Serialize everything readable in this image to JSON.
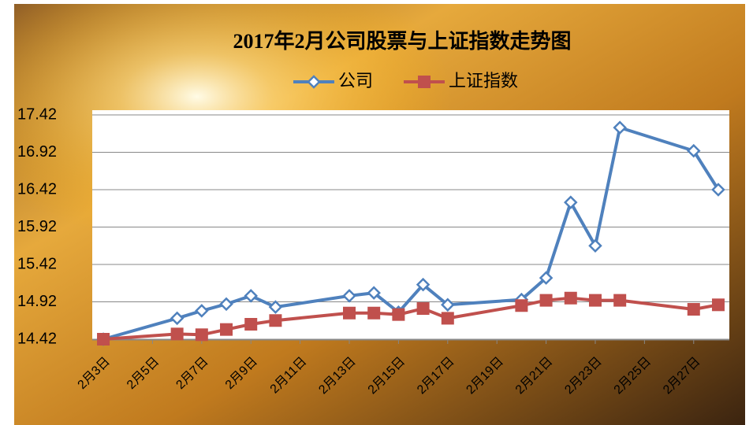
{
  "chart_data": {
    "type": "line",
    "title": "2017年2月公司股票与上证指数走势图",
    "x": [
      "2月3日",
      "2月6日",
      "2月7日",
      "2月8日",
      "2月9日",
      "2月10日",
      "2月13日",
      "2月14日",
      "2月15日",
      "2月16日",
      "2月17日",
      "2月20日",
      "2月21日",
      "2月22日",
      "2月23日",
      "2月24日",
      "2月27日",
      "2月28日"
    ],
    "series": [
      {
        "name": "公司",
        "color": "#4f81bd",
        "marker": "diamond",
        "values": [
          14.42,
          14.7,
          14.8,
          14.89,
          15.0,
          14.85,
          15.0,
          15.04,
          14.78,
          15.15,
          14.88,
          14.95,
          15.24,
          16.25,
          15.67,
          17.25,
          16.94,
          16.42
        ]
      },
      {
        "name": "上证指数",
        "color": "#c0504d",
        "marker": "square",
        "values": [
          14.42,
          14.49,
          14.48,
          14.55,
          14.62,
          14.67,
          14.77,
          14.77,
          14.75,
          14.83,
          14.7,
          14.87,
          14.94,
          14.97,
          14.94,
          14.94,
          14.82,
          14.88
        ]
      }
    ],
    "xlim": [
      "2月3日",
      "2月28日"
    ],
    "xticks": [
      "2月3日",
      "2月5日",
      "2月7日",
      "2月9日",
      "2月11日",
      "2月13日",
      "2月15日",
      "2月17日",
      "2月19日",
      "2月21日",
      "2月23日",
      "2月25日",
      "2月27日"
    ],
    "ylim": [
      14.42,
      17.42
    ],
    "yticks": [
      14.42,
      14.92,
      15.42,
      15.92,
      16.42,
      16.92,
      17.42
    ],
    "grid": true,
    "legend": "top"
  }
}
